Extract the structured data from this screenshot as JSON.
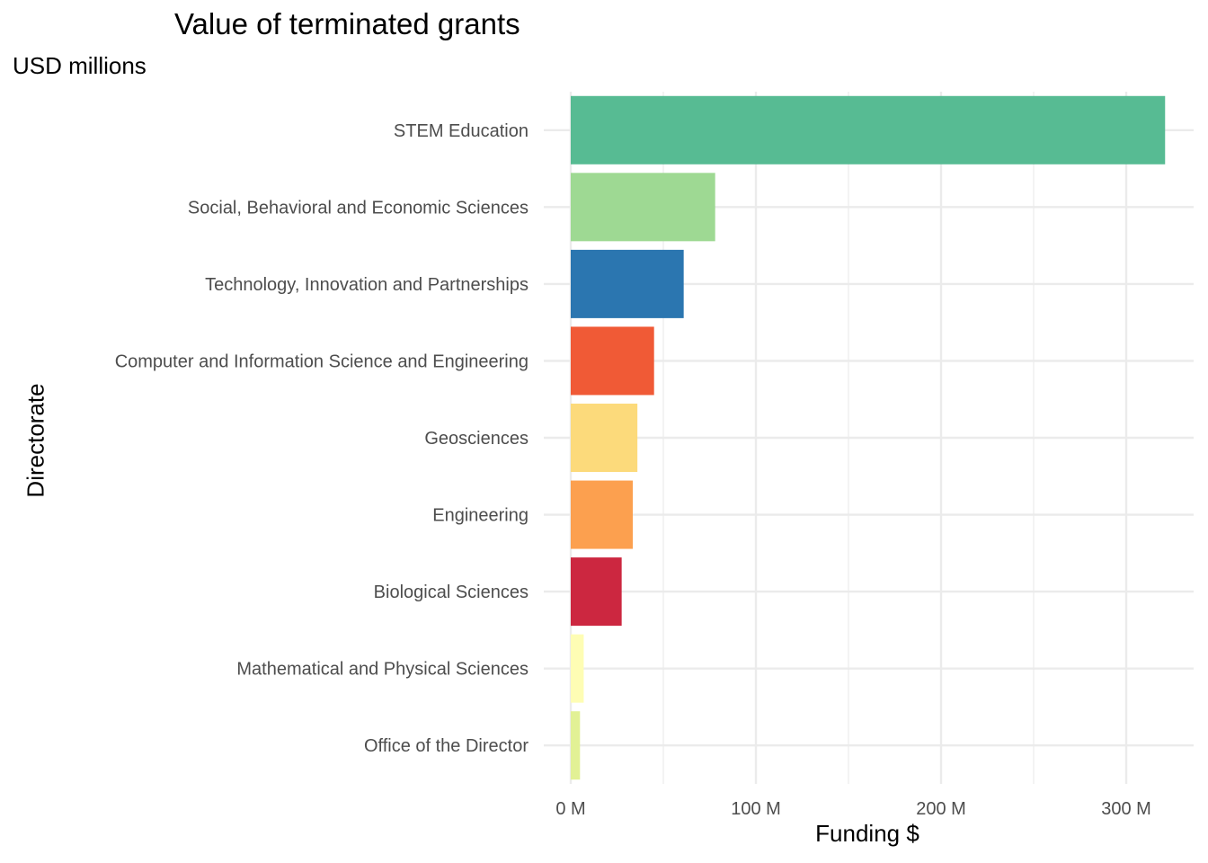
{
  "chart_data": {
    "type": "bar",
    "orientation": "horizontal",
    "title": "Value of terminated grants",
    "subtitle": "USD millions",
    "xlabel": "Funding $",
    "ylabel": "Directorate",
    "xlim": [
      0,
      330
    ],
    "x_ticks": [
      0,
      100,
      200,
      300
    ],
    "x_tick_labels": [
      "0 M",
      "100 M",
      "200 M",
      "300 M"
    ],
    "grid": true,
    "legend": "none",
    "categories": [
      "STEM Education",
      "Social, Behavioral and Economic Sciences",
      "Technology, Innovation and Partnerships",
      "Computer and Information Science and Engineering",
      "Geosciences",
      "Engineering",
      "Biological Sciences",
      "Mathematical and Physical Sciences",
      "Office of the Director"
    ],
    "values": [
      321,
      78,
      61,
      45,
      36,
      33.5,
      27.5,
      7,
      5
    ],
    "colors": [
      "#57BB93",
      "#9ED993",
      "#2B76B0",
      "#F05A36",
      "#FCDA7B",
      "#FCA04F",
      "#CC2740",
      "#FEFDB4",
      "#E2F195"
    ]
  }
}
